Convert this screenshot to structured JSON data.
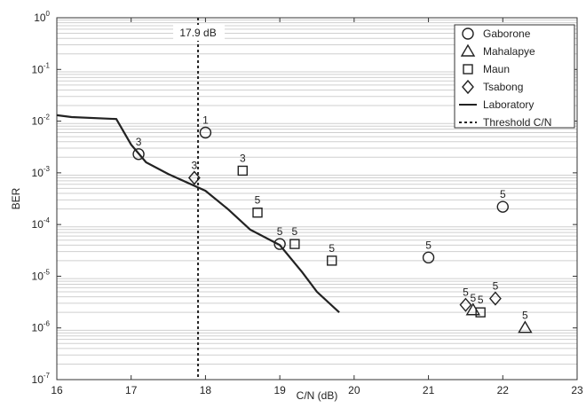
{
  "chart_data": {
    "type": "scatter",
    "title": "",
    "xlabel": "C/N (dB)",
    "ylabel": "BER",
    "xlim": [
      16,
      23
    ],
    "ylim_exponent": [
      -7,
      0
    ],
    "y_scale": "log",
    "x_ticks": [
      "16",
      "17",
      "18",
      "19",
      "20",
      "21",
      "22",
      "23"
    ],
    "y_ticks": [
      {
        "base": "10",
        "exp": "-7"
      },
      {
        "base": "10",
        "exp": "-6"
      },
      {
        "base": "10",
        "exp": "-5"
      },
      {
        "base": "10",
        "exp": "-4"
      },
      {
        "base": "10",
        "exp": "-3"
      },
      {
        "base": "10",
        "exp": "-2"
      },
      {
        "base": "10",
        "exp": "-1"
      },
      {
        "base": "10",
        "exp": "0"
      }
    ],
    "grid": "minor-y",
    "legend_position": "top-right",
    "threshold": {
      "x": 17.9,
      "label": "17.9 dB"
    },
    "series": [
      {
        "name": "Gaborone",
        "marker": "circle",
        "points": [
          [
            17.1,
            0.0023,
            "3"
          ],
          [
            18.0,
            0.006,
            "1"
          ],
          [
            19.0,
            4.2e-05,
            "5"
          ],
          [
            21.0,
            2.3e-05,
            "5"
          ],
          [
            22.0,
            0.00022,
            "5"
          ]
        ]
      },
      {
        "name": "Mahalapye",
        "marker": "triangle",
        "points": [
          [
            21.6,
            2.2e-06,
            "5"
          ],
          [
            22.3,
            1e-06,
            "5"
          ]
        ]
      },
      {
        "name": "Maun",
        "marker": "square",
        "points": [
          [
            18.5,
            0.0011,
            "3"
          ],
          [
            18.7,
            0.00017,
            "5"
          ],
          [
            19.2,
            4.2e-05,
            "5"
          ],
          [
            19.7,
            2e-05,
            "5"
          ],
          [
            21.7,
            2e-06,
            "5"
          ]
        ]
      },
      {
        "name": "Tsabong",
        "marker": "diamond",
        "points": [
          [
            17.85,
            0.0008,
            "3"
          ],
          [
            21.5,
            2.8e-06,
            "5"
          ],
          [
            21.9,
            3.7e-06,
            "5"
          ]
        ]
      },
      {
        "name": "Laboratory",
        "marker": "line",
        "points": [
          [
            16.0,
            0.013
          ],
          [
            16.2,
            0.012
          ],
          [
            16.8,
            0.011
          ],
          [
            17.0,
            0.0035
          ],
          [
            17.2,
            0.0016
          ],
          [
            17.5,
            0.00095
          ],
          [
            18.0,
            0.00045
          ],
          [
            18.3,
            0.0002
          ],
          [
            18.6,
            8e-05
          ],
          [
            19.0,
            4e-05
          ],
          [
            19.3,
            1.2e-05
          ],
          [
            19.5,
            5e-06
          ],
          [
            19.8,
            2e-06
          ]
        ]
      },
      {
        "name": "Threshold C/N",
        "marker": "dashed-line",
        "points": []
      }
    ]
  }
}
